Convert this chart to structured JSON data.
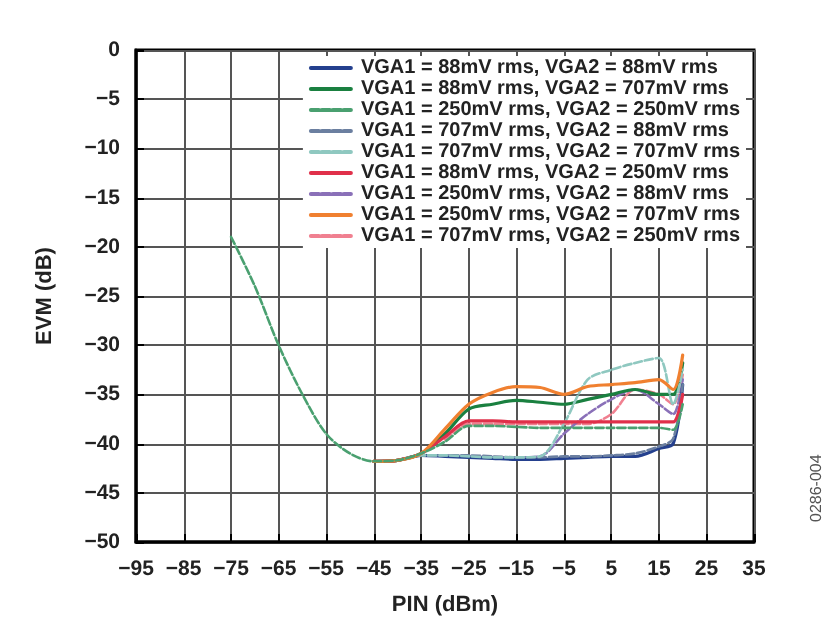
{
  "chart_data": {
    "type": "line",
    "xlabel": "PIN (dBm)",
    "ylabel": "EVM (dB)",
    "xlim": [
      -95,
      35
    ],
    "xticks": [
      -95,
      -85,
      -75,
      -65,
      -55,
      -45,
      -35,
      -25,
      -15,
      -5,
      5,
      15,
      25,
      35
    ],
    "ylim": [
      -50,
      0
    ],
    "yticks": [
      -50,
      -45,
      -40,
      -35,
      -30,
      -25,
      -20,
      -15,
      -10,
      -5,
      0
    ],
    "grid": true,
    "legend": "top right",
    "marker": "none",
    "annotations": [
      "0286-004"
    ],
    "x": [
      -75,
      -70,
      -65,
      -60,
      -55,
      -50,
      -45,
      -40,
      -35,
      -30,
      -25,
      -20,
      -15,
      -10,
      -5,
      0,
      5,
      10,
      15,
      18,
      20
    ],
    "series": [
      {
        "name": "VGA1 = 88mV rms, VGA2 = 88mV rms",
        "color": "#24408e",
        "line_style": "solid",
        "values": [
          null,
          null,
          null,
          null,
          null,
          null,
          -41.8,
          -41.7,
          -41.2,
          -41.3,
          -41.4,
          -41.5,
          -41.6,
          -41.6,
          -41.5,
          -41.4,
          -41.3,
          -41.3,
          -40.5,
          -40,
          -34
        ]
      },
      {
        "name": "VGA1 = 88mV rms, VGA2 = 707mV rms",
        "color": "#1a8040",
        "line_style": "solid",
        "values": [
          null,
          null,
          null,
          null,
          null,
          null,
          -41.8,
          -41.7,
          -41,
          -39,
          -36.5,
          -36,
          -35.6,
          -35.8,
          -36,
          -35.5,
          -35,
          -34.5,
          -35,
          -35,
          -31.8
        ]
      },
      {
        "name": "VGA1 = 250mV rms, VGA2 = 250mV rms",
        "color": "#4aa070",
        "line_style": "dashed",
        "values": [
          -19,
          -24,
          -30,
          -35,
          -39,
          -41,
          -41.8,
          -41.7,
          -41,
          -39.8,
          -38.2,
          -38.2,
          -38.3,
          -38.4,
          -38.4,
          -38.4,
          -38.4,
          -38.4,
          -38.4,
          -38.6,
          -36
        ]
      },
      {
        "name": "VGA1 = 707mV rms, VGA2 = 88mV rms",
        "color": "#6b7fa0",
        "line_style": "dashed",
        "values": [
          null,
          null,
          null,
          null,
          null,
          null,
          -41.8,
          -41.7,
          -41.2,
          -41.2,
          -41.2,
          -41.3,
          -41.4,
          -41.4,
          -41.3,
          -41.3,
          -41.2,
          -41,
          -40.3,
          -39.5,
          -34
        ]
      },
      {
        "name": "VGA1 = 707mV rms, VGA2 = 707mV rms",
        "color": "#8fc8c0",
        "line_style": "dashed",
        "values": [
          null,
          null,
          null,
          null,
          null,
          null,
          -41.8,
          -41.7,
          -41.2,
          -41.2,
          -41.3,
          -41.4,
          -41.4,
          -41.3,
          -38,
          -33.5,
          -32.5,
          -31.8,
          -31.3,
          -36,
          -32.5
        ]
      },
      {
        "name": "VGA1 = 88mV rms, VGA2 = 250mV rms",
        "color": "#e0304a",
        "line_style": "solid",
        "values": [
          null,
          null,
          null,
          null,
          null,
          null,
          -41.8,
          -41.7,
          -41,
          -39.3,
          -37.7,
          -37.7,
          -37.8,
          -37.8,
          -37.8,
          -37.8,
          -37.8,
          -37.8,
          -37.8,
          -37.8,
          -35
        ]
      },
      {
        "name": "VGA1 = 250mV rms, VGA2 = 88mV rms",
        "color": "#8a70b8",
        "line_style": "dashed",
        "values": [
          null,
          null,
          null,
          null,
          null,
          null,
          null,
          -41.7,
          -41.2,
          -41.2,
          -41.3,
          -41.4,
          -41.4,
          -41.3,
          -39,
          -37,
          -35.5,
          -34.5,
          -36,
          -37,
          -33.5
        ]
      },
      {
        "name": "VGA1 = 250mV rms, VGA2 = 707mV rms",
        "color": "#f08030",
        "line_style": "solid",
        "values": [
          null,
          null,
          null,
          null,
          null,
          null,
          -41.8,
          -41.7,
          -41,
          -38.5,
          -36,
          -34.8,
          -34.2,
          -34.3,
          -35,
          -34.2,
          -34,
          -33.8,
          -33.5,
          -34.5,
          -31
        ]
      },
      {
        "name": "VGA1 = 707mV rms, VGA2 = 250mV rms",
        "color": "#f08090",
        "line_style": "dashed",
        "values": [
          null,
          null,
          null,
          null,
          null,
          null,
          null,
          null,
          null,
          -39.6,
          -38,
          -38,
          -38,
          -38,
          -38,
          -38,
          -37,
          -34.5,
          -35,
          -36,
          -33
        ]
      }
    ]
  }
}
